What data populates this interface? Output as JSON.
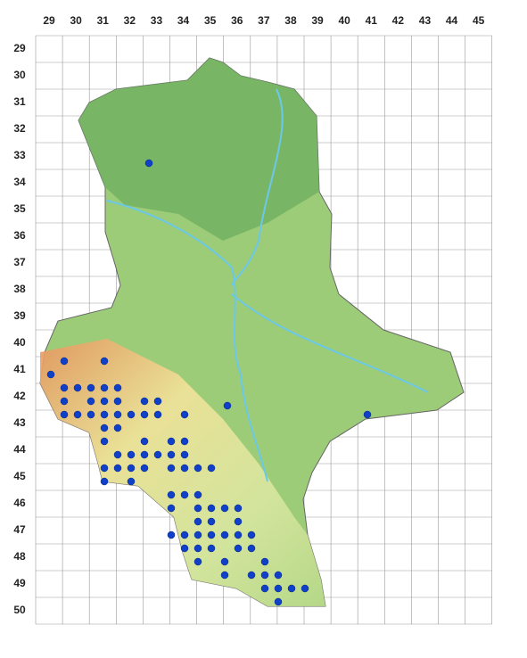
{
  "grid": {
    "columns": [
      "29",
      "30",
      "31",
      "32",
      "33",
      "34",
      "35",
      "36",
      "37",
      "38",
      "39",
      "40",
      "41",
      "42",
      "43",
      "44",
      "45"
    ],
    "rows": [
      "29",
      "30",
      "31",
      "32",
      "33",
      "34",
      "35",
      "36",
      "37",
      "38",
      "39",
      "40",
      "41",
      "42",
      "43",
      "44",
      "45",
      "46",
      "47",
      "48",
      "49",
      "50"
    ]
  }
}
